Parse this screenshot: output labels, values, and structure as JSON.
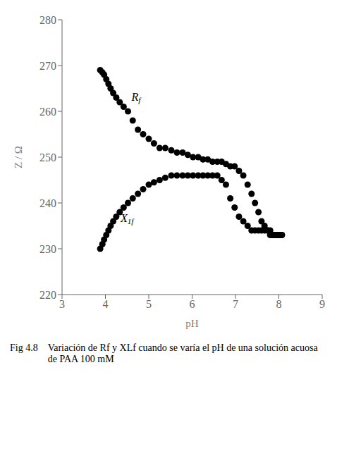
{
  "chart_data": {
    "type": "scatter",
    "title": "Fig 4.8",
    "subtitle": "Variación de Rf y XLf cuando se varía el pH de una solución acuosa\nde PAA 100 mM",
    "x_label": "pH",
    "y_label": "Z / Ω",
    "xlim": [
      3,
      9
    ],
    "ylim": [
      220,
      280
    ],
    "xticks": [
      3,
      4,
      5,
      6,
      7,
      8,
      9
    ],
    "yticks": [
      220,
      230,
      240,
      250,
      260,
      270,
      280
    ],
    "grid": false,
    "x": [
      3.88,
      3.93,
      3.97,
      4.02,
      4.07,
      4.12,
      4.18,
      4.25,
      4.33,
      4.42,
      4.52,
      4.63,
      4.75,
      4.87,
      5.0,
      5.12,
      5.25,
      5.38,
      5.52,
      5.65,
      5.78,
      5.9,
      6.02,
      6.14,
      6.25,
      6.36,
      6.47,
      6.58,
      6.68,
      6.78,
      6.88,
      6.98,
      7.08,
      7.18,
      7.28,
      7.37,
      7.45,
      7.53,
      7.6,
      7.67,
      7.74,
      7.8,
      7.86,
      7.92,
      7.97,
      8.02,
      8.07
    ],
    "series": [
      {
        "color": "#000000",
        "values": [
          269,
          268.5,
          268,
          267,
          266,
          265,
          264,
          263,
          262,
          261,
          260,
          258,
          256,
          255,
          254,
          253,
          252,
          252,
          251.5,
          251,
          251,
          250.5,
          250,
          250,
          249.5,
          249.5,
          249,
          249,
          249,
          248.5,
          248,
          248,
          247,
          246,
          244,
          242,
          240,
          238,
          236,
          235,
          234,
          234,
          233,
          233,
          233,
          233,
          233
        ]
      },
      {
        "color": "#000000",
        "values": [
          230,
          231,
          232,
          233,
          234,
          235,
          236,
          237,
          238,
          239,
          240,
          241,
          242,
          243,
          244,
          244.5,
          245,
          245.5,
          246,
          246,
          246,
          246,
          246,
          246,
          246,
          246,
          246,
          246,
          245,
          244,
          241,
          239,
          237,
          236,
          235,
          234,
          234,
          234,
          234,
          234,
          234,
          233,
          233,
          233,
          233,
          233,
          233
        ]
      }
    ],
    "annotations": [
      {
        "text": "Rf",
        "x": 4.6,
        "y": 263
      },
      {
        "text": "X1f",
        "x": 4.35,
        "y": 236.5
      }
    ]
  }
}
